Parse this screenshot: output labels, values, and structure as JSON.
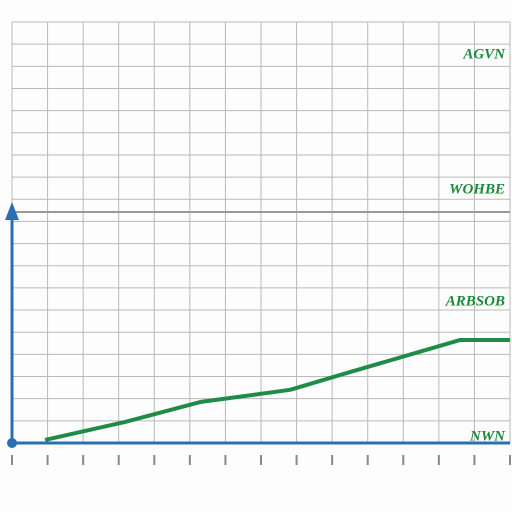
{
  "chart_data": {
    "type": "line",
    "x": [
      0.93,
      3.18,
      5.29,
      7.82,
      9.5,
      12.6,
      14
    ],
    "series": [
      {
        "color": "#1e8c46",
        "values": [
          0.14,
          0.95,
          1.85,
          2.4,
          3.2,
          4.65,
          4.65
        ]
      }
    ],
    "xlim": [
      0,
      14
    ],
    "ylim": [
      0,
      19
    ],
    "xticks": [
      0,
      1,
      2,
      3,
      4,
      5,
      6,
      7,
      8,
      9,
      10,
      11,
      12,
      13,
      14
    ],
    "yticks": [
      0,
      1,
      2,
      3,
      4,
      5,
      6,
      7,
      8,
      9,
      10,
      11,
      12,
      13,
      14,
      15,
      16,
      17,
      18,
      19
    ],
    "grid": true,
    "annotations": [
      "AGVN",
      "WOHBE",
      "ARBSOB",
      "NWN"
    ]
  }
}
